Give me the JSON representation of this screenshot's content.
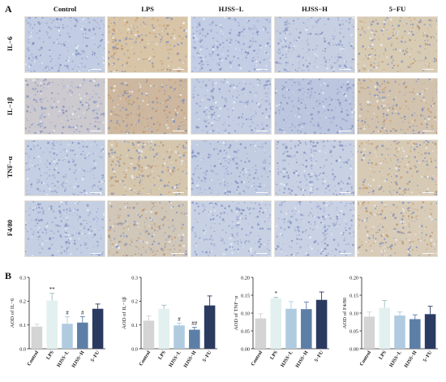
{
  "panels": {
    "a": "A",
    "b": "B"
  },
  "columns": [
    "Control",
    "LPS",
    "HJSS−L",
    "HJSS−H",
    "5−FU"
  ],
  "rows": [
    "IL−6",
    "IL−1β",
    "TNF−α",
    "F4/80"
  ],
  "tile_tone": {
    "IL−6": [
      "#c2cde3",
      "#d8c4a6",
      "#c3cde4",
      "#c7cfe2",
      "#d8cbb4"
    ],
    "IL−1β": [
      "#ccc9cf",
      "#cdb79e",
      "#c4cde2",
      "#bcc6df",
      "#d2c3ae"
    ],
    "TNF−α": [
      "#c4cfe3",
      "#d5c6ae",
      "#c3cde2",
      "#c8d0e3",
      "#d7cab5"
    ],
    "F4/80": [
      "#c5cfe3",
      "#d1c7b8",
      "#c8d1e4",
      "#c9d1e4",
      "#d8ccb8"
    ]
  },
  "chart_data": [
    {
      "type": "bar",
      "categories": [
        "Control",
        "LPS",
        "HJSS−L",
        "HJSS−H",
        "5−FU"
      ],
      "values": [
        0.093,
        0.203,
        0.105,
        0.11,
        0.168
      ],
      "errors": [
        0.01,
        0.03,
        0.03,
        0.025,
        0.02
      ],
      "annotations": [
        "",
        "**",
        "#",
        "#",
        ""
      ],
      "colors": [
        "#d4d4d4",
        "#e3f0f0",
        "#b0cbe0",
        "#5d7fa7",
        "#2b3a60"
      ],
      "ylabel": "AOD of IL−6",
      "yticks": [
        "0.0",
        "0.1",
        "0.2",
        "0.3"
      ],
      "ylim": [
        0,
        0.3
      ]
    },
    {
      "type": "bar",
      "categories": [
        "Control",
        "LPS",
        "HJSS−L",
        "HJSS−H",
        "5−FU"
      ],
      "values": [
        0.118,
        0.168,
        0.098,
        0.08,
        0.182
      ],
      "errors": [
        0.02,
        0.015,
        0.01,
        0.01,
        0.04
      ],
      "annotations": [
        "",
        "",
        "#",
        "##",
        ""
      ],
      "colors": [
        "#d4d4d4",
        "#e3f0f0",
        "#b0cbe0",
        "#5d7fa7",
        "#2b3a60"
      ],
      "ylabel": "AOD of IL−1β",
      "yticks": [
        "0.0",
        "0.1",
        "0.2",
        "0.3"
      ],
      "ylim": [
        0,
        0.3
      ]
    },
    {
      "type": "bar",
      "categories": [
        "Control",
        "LPS",
        "HJSS−L",
        "HJSS−H",
        "5−FU"
      ],
      "values": [
        0.085,
        0.141,
        0.112,
        0.111,
        0.137
      ],
      "errors": [
        0.013,
        0.003,
        0.02,
        0.02,
        0.022
      ],
      "annotations": [
        "",
        "*",
        "",
        "",
        ""
      ],
      "colors": [
        "#d4d4d4",
        "#e3f0f0",
        "#b0cbe0",
        "#5d7fa7",
        "#2b3a60"
      ],
      "ylabel": "AOD of TNF−α",
      "yticks": [
        "0.00",
        "0.05",
        "0.10",
        "0.15",
        "0.20"
      ],
      "ylim": [
        0,
        0.2
      ]
    },
    {
      "type": "bar",
      "categories": [
        "Control",
        "LPS",
        "HJSS−L",
        "HJSS−H",
        "5−FU"
      ],
      "values": [
        0.09,
        0.115,
        0.093,
        0.083,
        0.097
      ],
      "errors": [
        0.013,
        0.02,
        0.01,
        0.012,
        0.022
      ],
      "annotations": [
        "",
        "",
        "",
        "",
        ""
      ],
      "colors": [
        "#d4d4d4",
        "#e3f0f0",
        "#b0cbe0",
        "#5d7fa7",
        "#2b3a60"
      ],
      "ylabel": "AOD of F4/80",
      "yticks": [
        "0.00",
        "0.05",
        "0.10",
        "0.15",
        "0.20"
      ],
      "ylim": [
        0,
        0.2
      ]
    }
  ]
}
